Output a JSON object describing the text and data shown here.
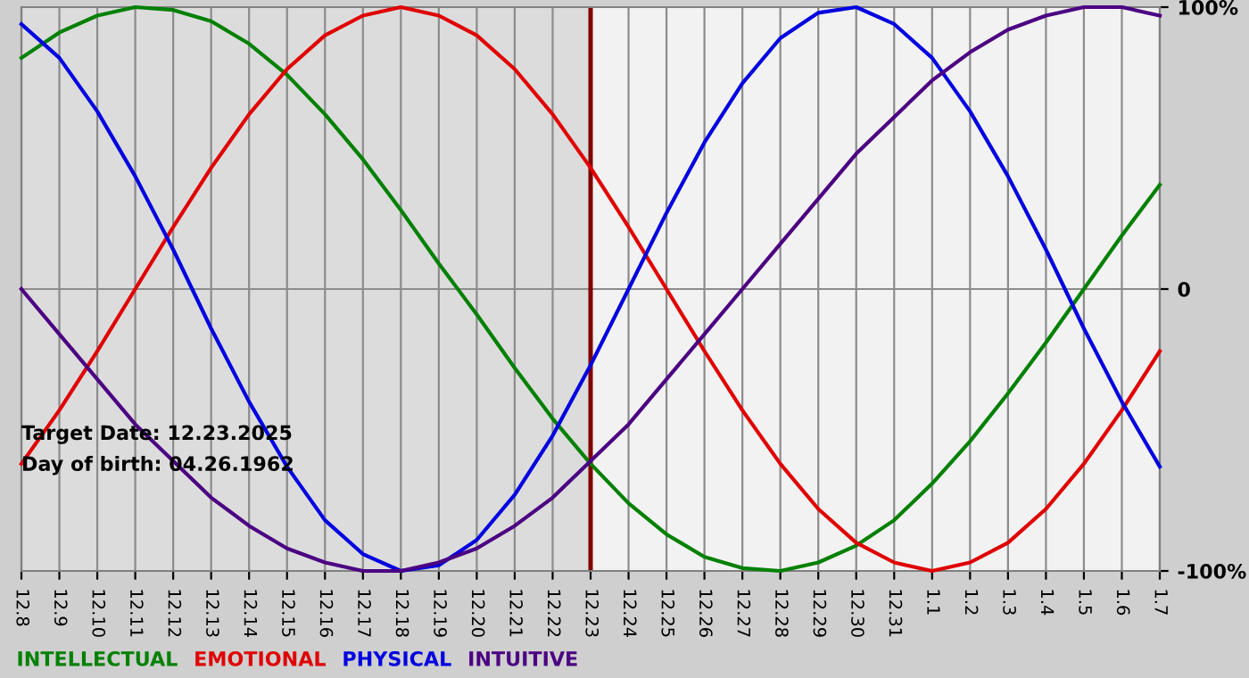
{
  "chart_data": {
    "type": "line",
    "categories": [
      "12.8",
      "12.9",
      "12.10",
      "12.11",
      "12.12",
      "12.13",
      "12.14",
      "12.15",
      "12.16",
      "12.17",
      "12.18",
      "12.19",
      "12.20",
      "12.21",
      "12.22",
      "12.23",
      "12.24",
      "12.25",
      "12.26",
      "12.27",
      "12.28",
      "12.29",
      "12.30",
      "12.31",
      "1.1",
      "1.2",
      "1.3",
      "1.4",
      "1.5",
      "1.6",
      "1.7"
    ],
    "series": [
      {
        "name": "INTELLECTUAL",
        "color": "#008000",
        "values": [
          82,
          91,
          97,
          100,
          99,
          95,
          87,
          76,
          62,
          46,
          28,
          9,
          -9,
          -28,
          -46,
          -62,
          -76,
          -87,
          -95,
          -99,
          -100,
          -97,
          -91,
          -82,
          -69,
          -54,
          -37,
          -19,
          0,
          19,
          37
        ]
      },
      {
        "name": "EMOTIONAL",
        "color": "#e00000",
        "values": [
          -62,
          -43,
          -22,
          0,
          22,
          43,
          62,
          78,
          90,
          97,
          100,
          97,
          90,
          78,
          62,
          43,
          22,
          0,
          -22,
          -43,
          -62,
          -78,
          -90,
          -97,
          -100,
          -97,
          -90,
          -78,
          -62,
          -43,
          -22
        ]
      },
      {
        "name": "PHYSICAL",
        "color": "#0000e0",
        "values": [
          94,
          82,
          63,
          40,
          14,
          -14,
          -40,
          -63,
          -82,
          -94,
          -100,
          -98,
          -89,
          -73,
          -52,
          -27,
          0,
          27,
          52,
          73,
          89,
          98,
          100,
          94,
          82,
          63,
          40,
          14,
          -14,
          -40,
          -63
        ]
      },
      {
        "name": "INTUITIVE",
        "color": "#4b0082",
        "values": [
          0,
          -16,
          -32,
          -48,
          -61,
          -74,
          -84,
          -92,
          -97,
          -100,
          -100,
          -97,
          -92,
          -84,
          -74,
          -61,
          -48,
          -32,
          -16,
          0,
          16,
          32,
          48,
          61,
          74,
          84,
          92,
          97,
          100,
          100,
          97
        ]
      }
    ],
    "ylim": [
      -100,
      100
    ],
    "yticks": [
      {
        "value": 100,
        "label": "100%"
      },
      0,
      {
        "value": -100,
        "label": "-100%"
      }
    ],
    "grid": true,
    "legend": "bottom left",
    "marker": "none",
    "line_style": "solid",
    "ref_lines": [
      {
        "axis": "x",
        "value": "12.23",
        "label": null,
        "color": "#800000"
      }
    ],
    "bands": [
      {
        "axis": "x",
        "from": "12.8",
        "to": "12.23",
        "label": null,
        "color": "#dcdcdc"
      }
    ],
    "annotations": [
      "Target Date: 12.23.2025",
      "Day of birth: 04.26.1962"
    ]
  }
}
